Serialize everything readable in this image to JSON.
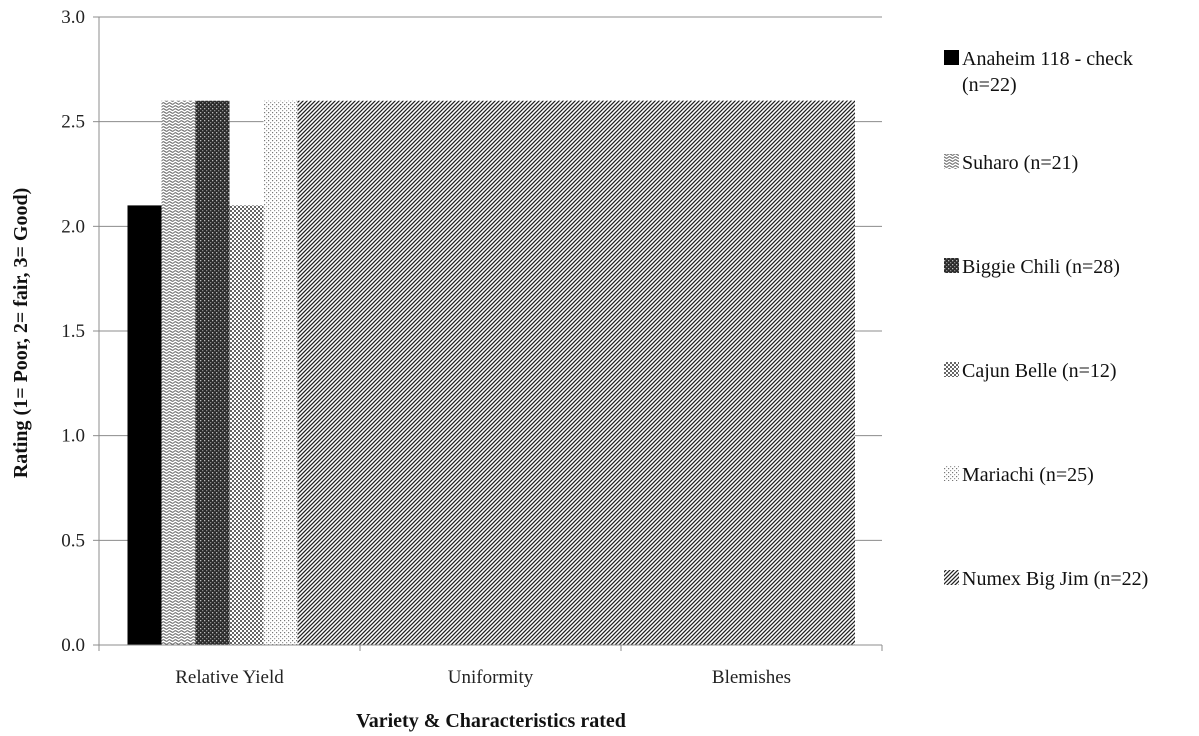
{
  "chart_data": {
    "type": "bar",
    "title": "",
    "xlabel": "Variety & Characteristics rated",
    "ylabel": "Rating (1= Poor, 2= fair, 3= Good)",
    "ylim": [
      0,
      3
    ],
    "yticks": [
      "0.0",
      "0.5",
      "1.0",
      "1.5",
      "2.0",
      "2.5",
      "3.0"
    ],
    "categories": [
      "Relative Yield",
      "Uniformity",
      "Blemishes"
    ],
    "grid": true,
    "legend_position": "right",
    "series": [
      {
        "name": "Anaheim 118 - check (n=22)",
        "values": [
          2.1,
          null,
          null
        ],
        "pattern": "solid-black"
      },
      {
        "name": "Suharo (n=21)",
        "values": [
          2.6,
          null,
          null
        ],
        "pattern": "wave"
      },
      {
        "name": "Biggie Chili (n=28)",
        "values": [
          2.6,
          null,
          null
        ],
        "pattern": "dark-grid"
      },
      {
        "name": "Cajun Belle (n=12)",
        "values": [
          2.1,
          null,
          null
        ],
        "pattern": "check"
      },
      {
        "name": "Mariachi (n=25)",
        "values": [
          2.6,
          null,
          null
        ],
        "pattern": "dots"
      },
      {
        "name": "Numex Big Jim (n=22)",
        "values": [
          2.6,
          2.6,
          2.6
        ],
        "pattern": "diagonal"
      }
    ]
  }
}
